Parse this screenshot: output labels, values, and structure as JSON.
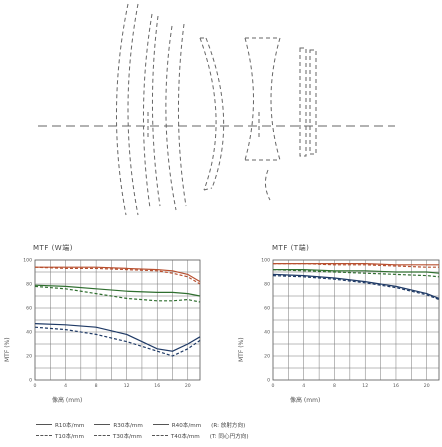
{
  "charts": [
    {
      "id": "wide",
      "title": "MTF (W端)",
      "ylabel": "MTF (%)",
      "xlabel": "像高 (mm)",
      "y_ticks": [
        "100",
        "80",
        "60",
        "40",
        "20",
        "0"
      ],
      "x_ticks": [
        "0",
        "4",
        "8",
        "12",
        "16",
        "20"
      ]
    },
    {
      "id": "tele",
      "title": "MTF (T端)",
      "ylabel": "MTF (%)",
      "xlabel": "像高 (mm)",
      "y_ticks": [
        "100",
        "80",
        "60",
        "40",
        "20",
        "0"
      ],
      "x_ticks": [
        "0",
        "4",
        "8",
        "12",
        "16",
        "20"
      ]
    }
  ],
  "legend": [
    {
      "label": "R10本/mm",
      "style": "solid"
    },
    {
      "label": "R30本/mm",
      "style": "solid"
    },
    {
      "label": "R40本/mm",
      "style": "solid"
    },
    {
      "label": "(R: 放射方向)",
      "style": "none"
    },
    {
      "label": "T10本/mm",
      "style": "dashed"
    },
    {
      "label": "T30本/mm",
      "style": "dashed"
    },
    {
      "label": "T40本/mm",
      "style": "dashed"
    },
    {
      "label": "(T: 同心円方向)",
      "style": "none"
    }
  ],
  "chart_data": [
    {
      "type": "line",
      "title": "MTF (W端)",
      "xlabel": "像高 (mm)",
      "ylabel": "MTF (%)",
      "xlim": [
        0,
        21.6
      ],
      "ylim": [
        0,
        100
      ],
      "grid": true,
      "series": [
        {
          "name": "R10本/mm",
          "color": "#b85030",
          "style": "solid",
          "x": [
            0,
            4,
            8,
            12,
            16,
            18,
            20,
            21.6
          ],
          "y": [
            94,
            94,
            94,
            93,
            92,
            91,
            88,
            82
          ]
        },
        {
          "name": "T10本/mm",
          "color": "#b85030",
          "style": "dashed",
          "x": [
            0,
            4,
            8,
            12,
            16,
            18,
            20,
            21.6
          ],
          "y": [
            94,
            93,
            93,
            92,
            91,
            89,
            86,
            80
          ]
        },
        {
          "name": "R30本/mm",
          "color": "#2f6e2f",
          "style": "solid",
          "x": [
            0,
            4,
            8,
            12,
            16,
            18,
            20,
            21.6
          ],
          "y": [
            79,
            78,
            76,
            74,
            73,
            73,
            72,
            70
          ]
        },
        {
          "name": "T30本/mm",
          "color": "#2f6e2f",
          "style": "dashed",
          "x": [
            0,
            4,
            8,
            12,
            16,
            18,
            20,
            21.6
          ],
          "y": [
            78,
            76,
            72,
            68,
            66,
            66,
            67,
            65
          ]
        },
        {
          "name": "R40本/mm",
          "color": "#1f3a66",
          "style": "solid",
          "x": [
            0,
            4,
            8,
            12,
            16,
            18,
            20,
            21.6
          ],
          "y": [
            47,
            46,
            44,
            38,
            26,
            24,
            30,
            36
          ]
        },
        {
          "name": "T40本/mm",
          "color": "#1f3a66",
          "style": "dashed",
          "x": [
            0,
            4,
            8,
            12,
            16,
            18,
            20,
            21.6
          ],
          "y": [
            44,
            42,
            38,
            32,
            24,
            20,
            26,
            33
          ]
        }
      ]
    },
    {
      "type": "line",
      "title": "MTF (T端)",
      "xlabel": "像高 (mm)",
      "ylabel": "MTF (%)",
      "xlim": [
        0,
        21.6
      ],
      "ylim": [
        0,
        100
      ],
      "grid": true,
      "series": [
        {
          "name": "R10本/mm",
          "color": "#b85030",
          "style": "solid",
          "x": [
            0,
            4,
            8,
            12,
            16,
            20,
            21.6
          ],
          "y": [
            97,
            97,
            97,
            97,
            96,
            96,
            96
          ]
        },
        {
          "name": "T10本/mm",
          "color": "#b85030",
          "style": "dashed",
          "x": [
            0,
            4,
            8,
            12,
            16,
            20,
            21.6
          ],
          "y": [
            97,
            97,
            96,
            96,
            95,
            94,
            94
          ]
        },
        {
          "name": "R30本/mm",
          "color": "#2f6e2f",
          "style": "solid",
          "x": [
            0,
            4,
            8,
            12,
            16,
            20,
            21.6
          ],
          "y": [
            92,
            92,
            91,
            91,
            90,
            90,
            89
          ]
        },
        {
          "name": "T30本/mm",
          "color": "#2f6e2f",
          "style": "dashed",
          "x": [
            0,
            4,
            8,
            12,
            16,
            20,
            21.6
          ],
          "y": [
            92,
            91,
            90,
            89,
            88,
            87,
            86
          ]
        },
        {
          "name": "R40本/mm",
          "color": "#1f3a66",
          "style": "solid",
          "x": [
            0,
            4,
            8,
            12,
            16,
            20,
            21.6
          ],
          "y": [
            88,
            87,
            85,
            82,
            78,
            72,
            68
          ]
        },
        {
          "name": "T40本/mm",
          "color": "#1f3a66",
          "style": "dashed",
          "x": [
            0,
            4,
            8,
            12,
            16,
            20,
            21.6
          ],
          "y": [
            87,
            86,
            84,
            81,
            77,
            71,
            67
          ]
        }
      ]
    }
  ]
}
